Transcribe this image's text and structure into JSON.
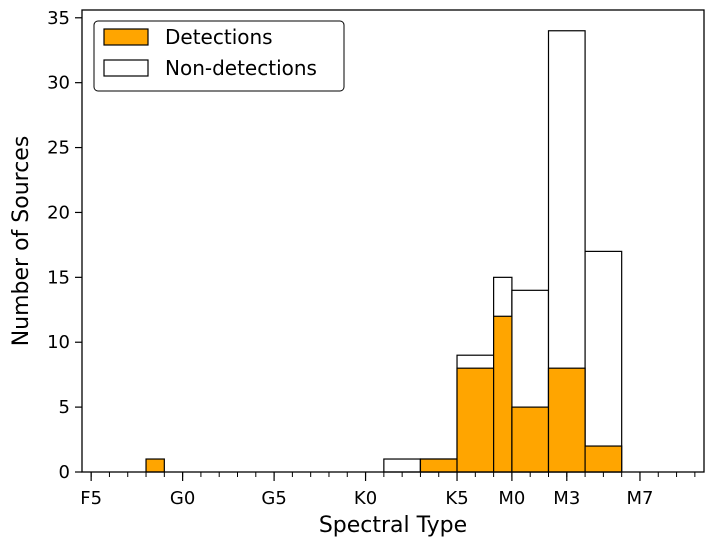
{
  "chart_data": {
    "type": "bar",
    "xlabel": "Spectral Type",
    "ylabel": "Number of Sources",
    "ylim": [
      0,
      35.6
    ],
    "yticks": [
      0,
      5,
      10,
      15,
      20,
      25,
      30,
      35
    ],
    "xticklabels": [
      "F5",
      "G0",
      "G5",
      "K0",
      "K5",
      "M0",
      "M3",
      "M7"
    ],
    "categories": [
      "F5",
      "F6",
      "F7",
      "F8",
      "F9",
      "G0",
      "G1",
      "G2",
      "G3",
      "G4",
      "G5",
      "G6",
      "G7",
      "G8",
      "G9",
      "K0",
      "K1",
      "K2",
      "K3",
      "K4",
      "K5",
      "K6",
      "K7",
      "M0",
      "M1",
      "M2",
      "M3",
      "M4",
      "M5",
      "M6",
      "M7",
      "M8",
      "M9",
      "L0"
    ],
    "series": [
      {
        "name": "Detections",
        "color": "#FFA500",
        "bins": [
          {
            "from": "F8",
            "to": "F9",
            "value": 1
          },
          {
            "from": "F9",
            "to": "K1",
            "value": 0
          },
          {
            "from": "K1",
            "to": "K3",
            "value": 0
          },
          {
            "from": "K3",
            "to": "K5",
            "value": 1
          },
          {
            "from": "K5",
            "to": "K7",
            "value": 8
          },
          {
            "from": "K7",
            "to": "M0",
            "value": 12
          },
          {
            "from": "M0",
            "to": "M2",
            "value": 5
          },
          {
            "from": "M2",
            "to": "M4",
            "value": 8
          },
          {
            "from": "M4",
            "to": "M6",
            "value": 2
          }
        ]
      },
      {
        "name": "Non-detections",
        "color": "#ffffff",
        "bins": [
          {
            "from": "K1",
            "to": "K3",
            "value": 1
          },
          {
            "from": "K3",
            "to": "K5",
            "value": 1
          },
          {
            "from": "K5",
            "to": "K7",
            "value": 9
          },
          {
            "from": "K7",
            "to": "M0",
            "value": 15
          },
          {
            "from": "M0",
            "to": "M2",
            "value": 14
          },
          {
            "from": "M2",
            "to": "M4",
            "value": 34
          },
          {
            "from": "M4",
            "to": "M6",
            "value": 17
          }
        ]
      }
    ],
    "legend": {
      "position": "top-left",
      "entries": [
        "Detections",
        "Non-detections"
      ]
    },
    "grid": false
  }
}
